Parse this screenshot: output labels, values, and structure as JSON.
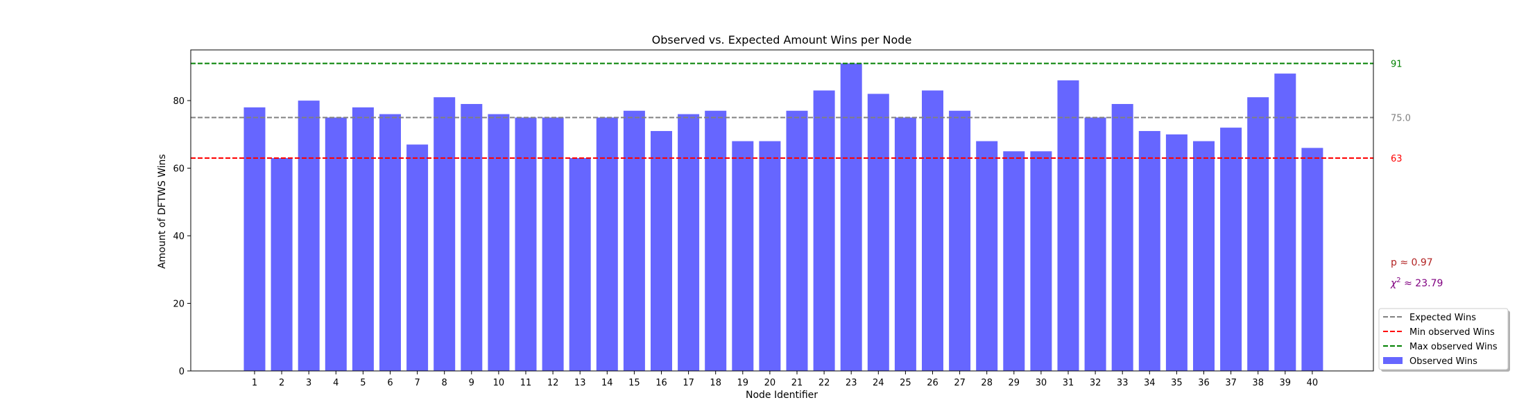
{
  "chart_data": {
    "type": "bar",
    "title": "Observed vs. Expected Amount Wins per Node",
    "xlabel": "Node Identifier",
    "ylabel": "Amount of DFTWS Wins",
    "ylim": [
      0,
      95
    ],
    "yticks": [
      0,
      20,
      40,
      60,
      80
    ],
    "categories": [
      "1",
      "2",
      "3",
      "4",
      "5",
      "6",
      "7",
      "8",
      "9",
      "10",
      "11",
      "12",
      "13",
      "14",
      "15",
      "16",
      "17",
      "18",
      "19",
      "20",
      "21",
      "22",
      "23",
      "24",
      "25",
      "26",
      "27",
      "28",
      "29",
      "30",
      "31",
      "32",
      "33",
      "34",
      "35",
      "36",
      "37",
      "38",
      "39",
      "40"
    ],
    "series": [
      {
        "name": "Observed Wins",
        "values": [
          78,
          63,
          80,
          75,
          78,
          76,
          67,
          81,
          79,
          76,
          75,
          75,
          63,
          75,
          77,
          71,
          76,
          77,
          68,
          68,
          77,
          83,
          91,
          82,
          75,
          83,
          77,
          68,
          65,
          65,
          86,
          75,
          79,
          71,
          70,
          68,
          72,
          81,
          88,
          66
        ],
        "color": "#6666ff"
      }
    ],
    "reference_lines": [
      {
        "name": "Expected Wins",
        "value": 75.0,
        "label": "75.0",
        "color": "#808080"
      },
      {
        "name": "Min observed Wins",
        "value": 63,
        "label": "63",
        "color": "#ff0000"
      },
      {
        "name": "Max observed Wins",
        "value": 91,
        "label": "91",
        "color": "#008000"
      }
    ],
    "annotations": [
      {
        "text": "p ≈ 0.97",
        "color": "#b22222"
      },
      {
        "prefix": "χ",
        "sup": "2",
        "text": " ≈ 23.79",
        "color": "#800080"
      }
    ],
    "legend": {
      "position": "lower-right-outside",
      "entries": [
        {
          "label": "Expected Wins",
          "kind": "dashed",
          "color": "#808080"
        },
        {
          "label": "Min observed Wins",
          "kind": "dashed",
          "color": "#ff0000"
        },
        {
          "label": "Max observed Wins",
          "kind": "dashed",
          "color": "#008000"
        },
        {
          "label": "Observed Wins",
          "kind": "patch",
          "color": "#6666ff"
        }
      ]
    },
    "grid": false
  }
}
